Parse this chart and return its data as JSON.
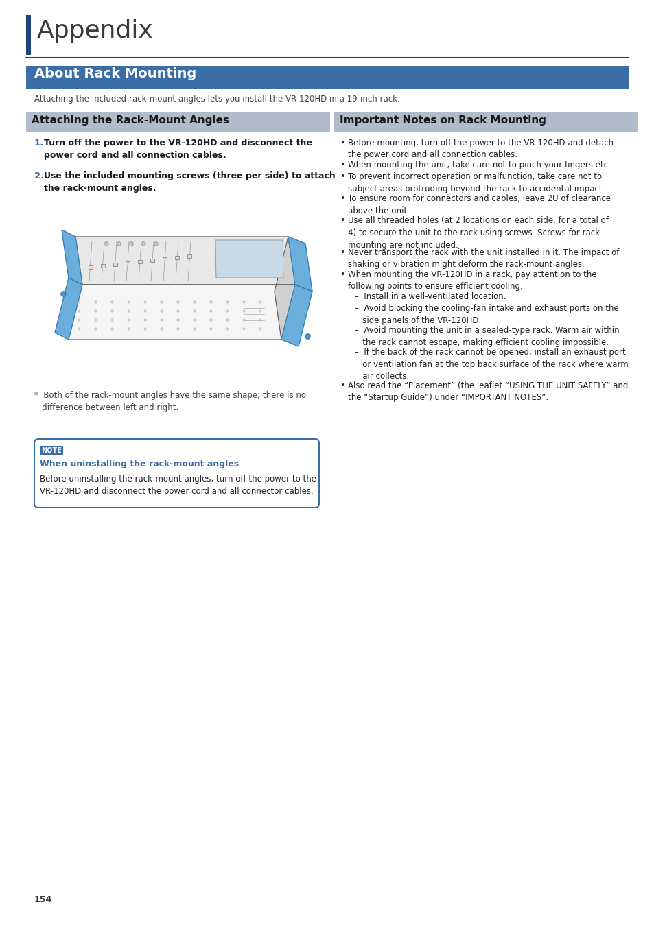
{
  "bg_color": "#ffffff",
  "title_chapter": "Appendix",
  "title_chapter_bar_color": "#1e4480",
  "section_main_title": "About Rack Mounting",
  "section_main_bg": "#3a6ea5",
  "section_main_text_color": "#ffffff",
  "section_main_subtitle": "Attaching the included rack-mount angles lets you install the VR-120HD in a 19-inch rack.",
  "left_section_title": "Attaching the Rack-Mount Angles",
  "left_section_title_bg": "#b0bccc",
  "right_section_title": "Important Notes on Rack Mounting",
  "right_section_title_bg": "#b0bccc",
  "step1_text_bold": "Turn off the power to the VR-120HD and disconnect the\npower cord and all connection cables.",
  "step2_text_bold": "Use the included mounting screws (three per side) to attach\nthe rack-mount angles.",
  "footnote_text": "*  Both of the rack-mount angles have the same shape; there is no\n   difference between left and right.",
  "note_label": "NOTE",
  "note_title": "When uninstalling the rack-mount angles",
  "note_body": "Before uninstalling the rack-mount angles, turn off the power to the\nVR-120HD and disconnect the power cord and all connector cables.",
  "note_border_color": "#3a6ea5",
  "note_label_bg": "#3a6ea5",
  "note_label_text_color": "#ffffff",
  "note_title_color": "#3a6ea5",
  "right_bullets": [
    "Before mounting, turn off the power to the VR-120HD and detach\nthe power cord and all connection cables.",
    "When mounting the unit, take care not to pinch your fingers etc.",
    "To prevent incorrect operation or malfunction, take care not to\nsubject areas protruding beyond the rack to accidental impact.",
    "To ensure room for connectors and cables, leave 2U of clearance\nabove the unit.",
    "Use all threaded holes (at 2 locations on each side, for a total of\n4) to secure the unit to the rack using screws. Screws for rack\nmounting are not included.",
    "Never transport the rack with the unit installed in it. The impact of\nshaking or vibration might deform the rack-mount angles.",
    "When mounting the VR-120HD in a rack, pay attention to the\nfollowing points to ensure efficient cooling."
  ],
  "right_sub_bullets": [
    "–  Install in a well-ventilated location.",
    "–  Avoid blocking the cooling-fan intake and exhaust ports on the\n   side panels of the VR-120HD.",
    "–  Avoid mounting the unit in a sealed-type rack. Warm air within\n   the rack cannot escape, making efficient cooling impossible.",
    "–  If the back of the rack cannot be opened, install an exhaust port\n   or ventilation fan at the top back surface of the rack where warm\n   air collects."
  ],
  "right_last_bullet": "Also read the “Placement” (the leaflet “USING THE UNIT SAFELY” and\nthe “Startup Guide”) under “IMPORTANT NOTES”.",
  "page_number": "154",
  "divider_color": "#1e4480",
  "step_number_color": "#3a6ea5"
}
